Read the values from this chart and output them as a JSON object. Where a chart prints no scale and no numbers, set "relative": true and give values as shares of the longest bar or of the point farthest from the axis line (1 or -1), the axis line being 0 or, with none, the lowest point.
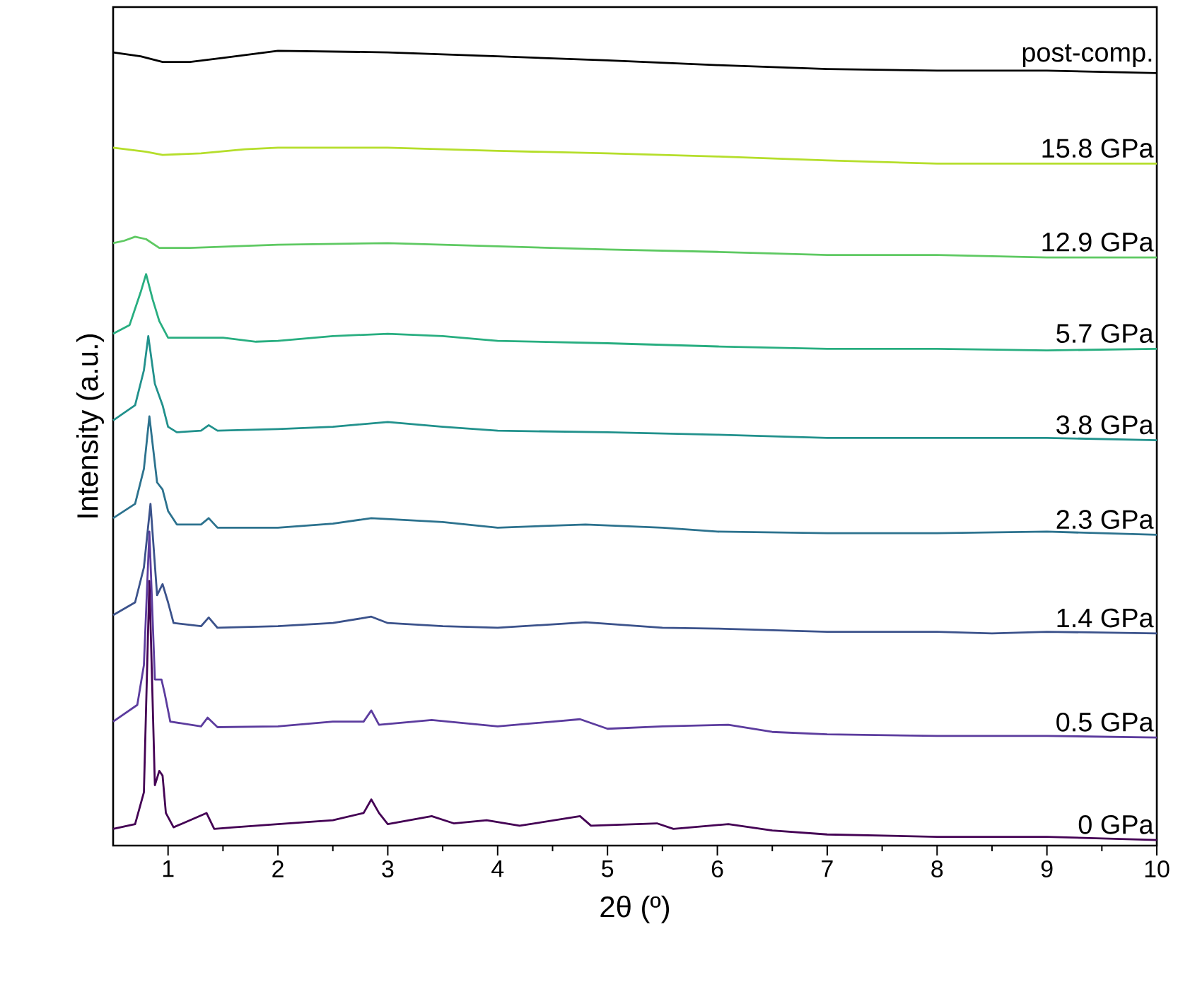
{
  "chart_data": {
    "type": "line",
    "relative": true,
    "xlabel": "2θ (º)",
    "ylabel": "Intensity (a.u.)",
    "xlim": [
      0.5,
      10
    ],
    "xticks": [
      1,
      2,
      3,
      4,
      5,
      6,
      7,
      8,
      9,
      10
    ],
    "series": [
      {
        "name": "0 GPa",
        "color": "#440154",
        "x": [
          0.5,
          0.7,
          0.78,
          0.83,
          0.88,
          0.92,
          0.95,
          0.98,
          1.05,
          1.35,
          1.42,
          1.6,
          2.0,
          2.5,
          2.78,
          2.85,
          2.92,
          3.0,
          3.4,
          3.6,
          3.9,
          4.2,
          4.75,
          4.85,
          5.45,
          5.6,
          6.1,
          6.5,
          7,
          8,
          9,
          10
        ],
        "values": [
          0.021,
          0.027,
          0.067,
          0.333,
          0.076,
          0.094,
          0.088,
          0.041,
          0.023,
          0.041,
          0.021,
          0.023,
          0.027,
          0.032,
          0.041,
          0.058,
          0.041,
          0.027,
          0.037,
          0.028,
          0.032,
          0.025,
          0.037,
          0.025,
          0.028,
          0.021,
          0.027,
          0.019,
          0.014,
          0.011,
          0.011,
          0.007
        ]
      },
      {
        "name": "0.5 GPa",
        "color": "#5c3c9e",
        "x": [
          0.5,
          0.72,
          0.78,
          0.83,
          0.88,
          0.94,
          0.97,
          1.02,
          1.3,
          1.36,
          1.45,
          2.0,
          2.5,
          2.78,
          2.85,
          2.92,
          3.4,
          4.0,
          4.75,
          5.0,
          5.5,
          6.1,
          6.5,
          7,
          8,
          9,
          10
        ],
        "values": [
          0.156,
          0.177,
          0.227,
          0.395,
          0.209,
          0.209,
          0.191,
          0.156,
          0.15,
          0.161,
          0.149,
          0.15,
          0.156,
          0.156,
          0.17,
          0.152,
          0.158,
          0.15,
          0.159,
          0.147,
          0.15,
          0.152,
          0.143,
          0.14,
          0.138,
          0.138,
          0.136
        ]
      },
      {
        "name": "1.4 GPa",
        "color": "#3b528b",
        "x": [
          0.5,
          0.7,
          0.78,
          0.84,
          0.9,
          0.95,
          1.0,
          1.05,
          1.3,
          1.37,
          1.45,
          2.0,
          2.5,
          2.85,
          3.0,
          3.5,
          4.0,
          4.8,
          5.5,
          6,
          7,
          8,
          8.5,
          9,
          10
        ],
        "values": [
          0.29,
          0.306,
          0.35,
          0.43,
          0.315,
          0.329,
          0.306,
          0.28,
          0.276,
          0.287,
          0.274,
          0.276,
          0.28,
          0.288,
          0.28,
          0.276,
          0.274,
          0.281,
          0.274,
          0.273,
          0.269,
          0.269,
          0.267,
          0.269,
          0.267
        ]
      },
      {
        "name": "2.3 GPa",
        "color": "#2c728e",
        "x": [
          0.5,
          0.7,
          0.78,
          0.83,
          0.9,
          0.95,
          1.0,
          1.08,
          1.3,
          1.37,
          1.45,
          2.0,
          2.5,
          2.85,
          3.5,
          4.0,
          4.8,
          5.5,
          6,
          7,
          8,
          9,
          10
        ],
        "values": [
          0.412,
          0.43,
          0.474,
          0.54,
          0.457,
          0.448,
          0.421,
          0.404,
          0.404,
          0.412,
          0.4,
          0.4,
          0.405,
          0.412,
          0.407,
          0.4,
          0.404,
          0.4,
          0.395,
          0.393,
          0.393,
          0.395,
          0.391
        ]
      },
      {
        "name": "3.8 GPa",
        "color": "#21918c",
        "x": [
          0.5,
          0.7,
          0.78,
          0.82,
          0.88,
          0.95,
          1.0,
          1.08,
          1.3,
          1.37,
          1.45,
          2.0,
          2.5,
          3.0,
          3.5,
          4.0,
          5,
          6,
          7,
          8,
          9,
          10
        ],
        "values": [
          0.535,
          0.554,
          0.598,
          0.641,
          0.581,
          0.554,
          0.527,
          0.52,
          0.522,
          0.529,
          0.522,
          0.524,
          0.527,
          0.533,
          0.527,
          0.522,
          0.52,
          0.517,
          0.513,
          0.513,
          0.513,
          0.51
        ]
      },
      {
        "name": "5.7 GPa",
        "color": "#28ae80",
        "x": [
          0.5,
          0.65,
          0.75,
          0.8,
          0.86,
          0.92,
          1.0,
          1.3,
          1.5,
          1.8,
          2.0,
          2.5,
          3.0,
          3.5,
          4.0,
          5,
          6,
          7,
          8,
          9,
          10
        ],
        "values": [
          0.644,
          0.655,
          0.696,
          0.719,
          0.687,
          0.66,
          0.639,
          0.639,
          0.639,
          0.634,
          0.635,
          0.641,
          0.644,
          0.641,
          0.635,
          0.632,
          0.628,
          0.625,
          0.625,
          0.623,
          0.625
        ]
      },
      {
        "name": "12.9 GPa",
        "color": "#5ec962",
        "x": [
          0.5,
          0.6,
          0.7,
          0.8,
          0.92,
          1.2,
          1.6,
          2.0,
          3.0,
          4,
          5,
          6,
          7,
          8,
          9,
          10
        ],
        "values": [
          0.758,
          0.761,
          0.766,
          0.763,
          0.752,
          0.752,
          0.754,
          0.756,
          0.758,
          0.754,
          0.75,
          0.747,
          0.743,
          0.743,
          0.74,
          0.74
        ]
      },
      {
        "name": "15.8 GPa",
        "color": "#b5de2b",
        "x": [
          0.5,
          0.8,
          0.95,
          1.3,
          1.7,
          2,
          3,
          4,
          5,
          6,
          7,
          8,
          9,
          10
        ],
        "values": [
          0.878,
          0.873,
          0.869,
          0.871,
          0.876,
          0.878,
          0.878,
          0.874,
          0.871,
          0.867,
          0.862,
          0.858,
          0.858,
          0.858
        ]
      },
      {
        "name": "post-comp.",
        "color": "#000000",
        "x": [
          0.5,
          0.75,
          0.95,
          1.2,
          1.5,
          2.0,
          3.0,
          4,
          5,
          6,
          7,
          8,
          9,
          10
        ],
        "values": [
          0.998,
          0.993,
          0.986,
          0.986,
          0.991,
          1.0,
          0.998,
          0.993,
          0.988,
          0.982,
          0.977,
          0.975,
          0.975,
          0.972
        ]
      }
    ]
  }
}
